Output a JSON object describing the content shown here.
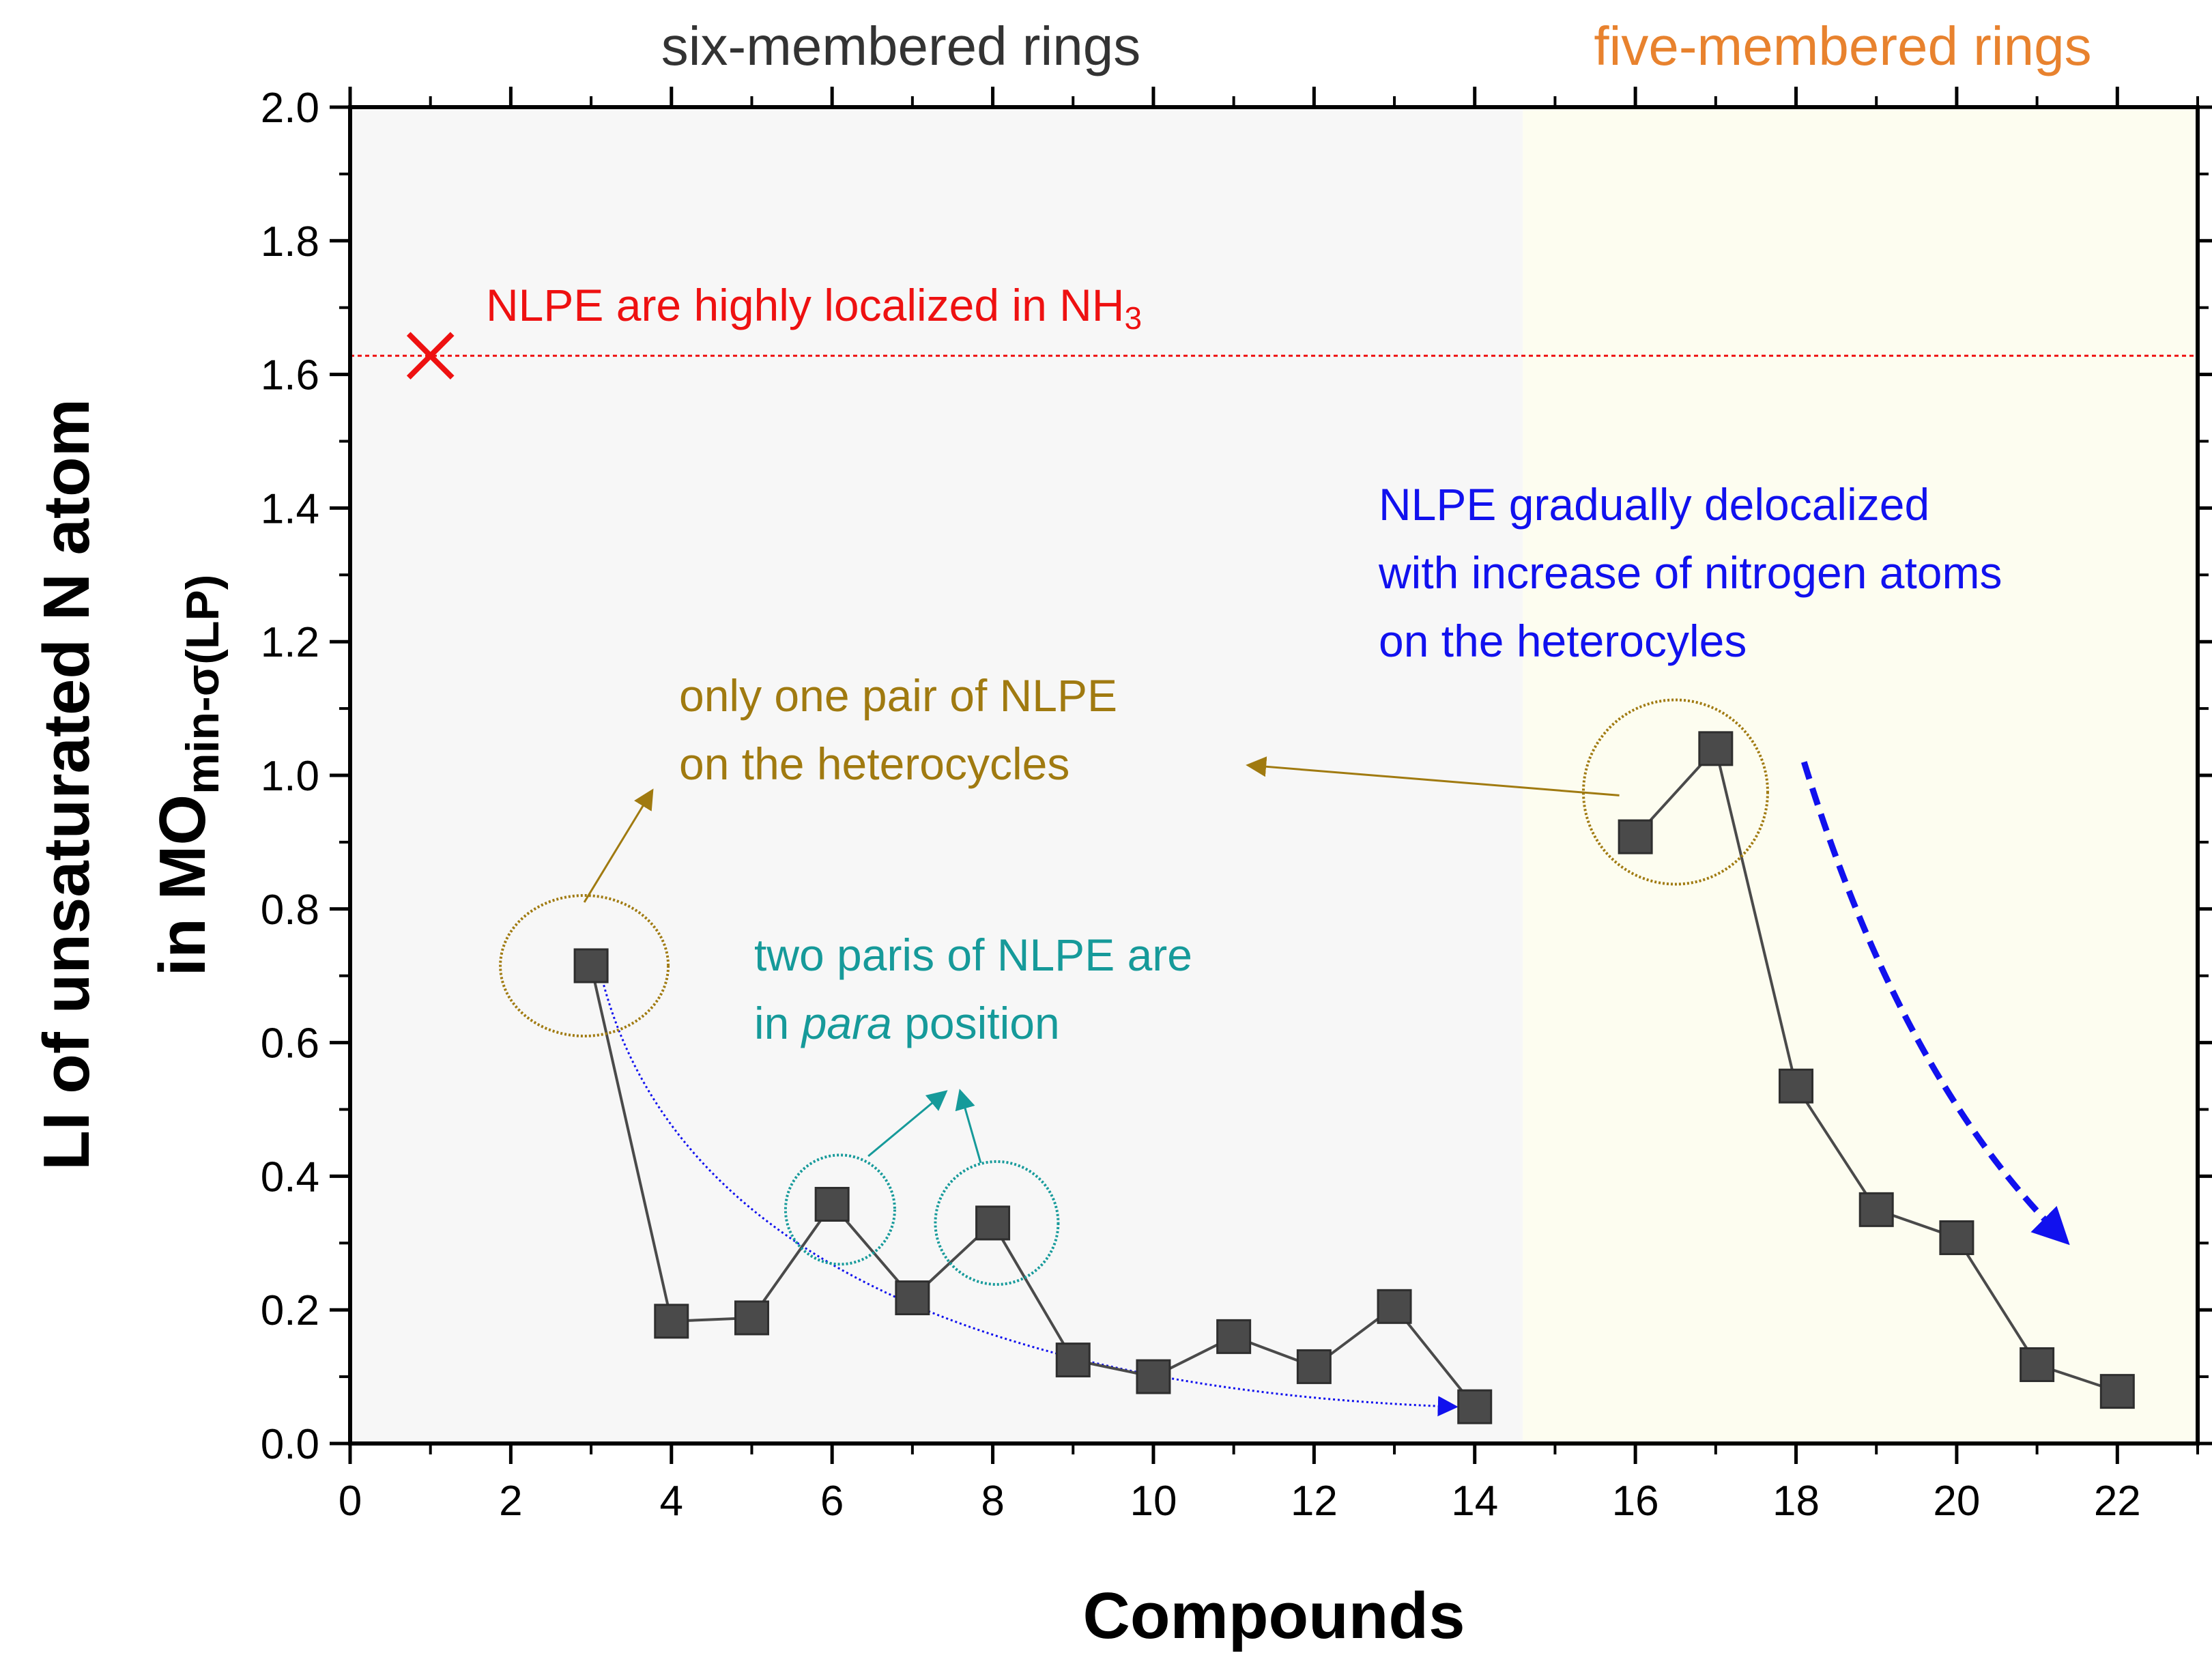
{
  "chart_data": {
    "type": "line",
    "title": "",
    "xlabel": "Compounds",
    "ylabel": {
      "line1": "LI of unsaturated N atom",
      "line2_prefix": "in MO",
      "line2_subscript": "min-σ(LP)"
    },
    "xlim": [
      0,
      23
    ],
    "ylim": [
      0.0,
      2.0
    ],
    "x_ticks": [
      "0",
      "2",
      "4",
      "6",
      "8",
      "10",
      "12",
      "14",
      "16",
      "18",
      "20",
      "22"
    ],
    "y_ticks": [
      "0.0",
      "0.2",
      "0.4",
      "0.6",
      "0.8",
      "1.0",
      "1.2",
      "1.4",
      "1.6",
      "1.8",
      "2.0"
    ],
    "grid": false,
    "regions": [
      {
        "name": "six-membered rings",
        "x_start": 0,
        "x_end": 14.6,
        "fill": "#f7f7f7",
        "label_color": "#333333"
      },
      {
        "name": "five-membered rings",
        "x_start": 14.6,
        "x_end": 23,
        "fill": "#fdfdf0",
        "label_color": "#e8822e"
      }
    ],
    "series": [
      {
        "name": "six-membered rings",
        "color": "#4a4a4a",
        "x": [
          3,
          4,
          5,
          6,
          7,
          8,
          9,
          10,
          11,
          12,
          13,
          14
        ],
        "values": [
          0.715,
          0.183,
          0.188,
          0.358,
          0.218,
          0.33,
          0.125,
          0.1,
          0.16,
          0.115,
          0.205,
          0.055
        ]
      },
      {
        "name": "five-membered rings",
        "color": "#4a4a4a",
        "x": [
          16,
          17,
          18,
          19,
          20,
          21,
          22
        ],
        "values": [
          0.908,
          1.04,
          0.535,
          0.35,
          0.308,
          0.118,
          0.078
        ]
      }
    ],
    "reference": {
      "label": "NLPE are highly localized in NH",
      "label_subscript": "3",
      "x": 1,
      "value": 1.628,
      "marker_color": "#ee1111",
      "line_color": "#ee1111"
    },
    "annotations": [
      {
        "lines": [
          "only one pair of NLPE",
          "on the heterocycles"
        ],
        "color": "#a07a10"
      },
      {
        "line1": "two paris of NLPE are",
        "line2_pre": "in ",
        "line2_italic": "para",
        "line2_post": " position",
        "color": "#169a9a"
      },
      {
        "lines": [
          "NLPE gradually delocalized",
          "with increase of nitrogen atoms",
          "on the heterocyles"
        ],
        "color": "#1111ee"
      }
    ]
  }
}
